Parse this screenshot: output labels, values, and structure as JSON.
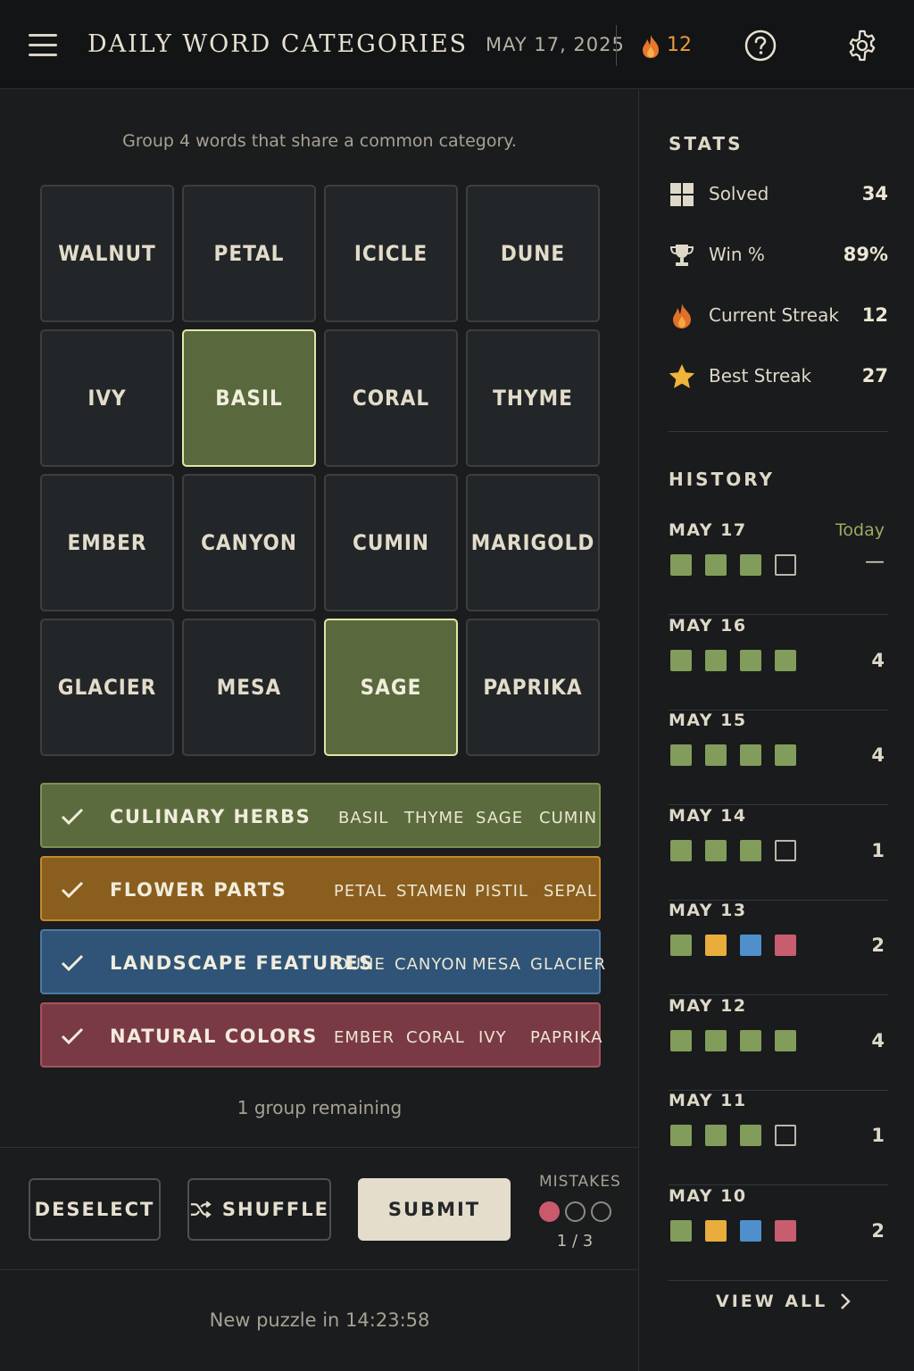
{
  "header": {
    "title": "DAILY WORD CATEGORIES",
    "date": "MAY 17, 2025",
    "streak": "12"
  },
  "main": {
    "instructions": "Group 4 words that share a common category.",
    "tiles": [
      {
        "word": "WALNUT",
        "selected": false
      },
      {
        "word": "PETAL",
        "selected": false
      },
      {
        "word": "ICICLE",
        "selected": false
      },
      {
        "word": "DUNE",
        "selected": false
      },
      {
        "word": "IVY",
        "selected": false
      },
      {
        "word": "BASIL",
        "selected": true
      },
      {
        "word": "CORAL",
        "selected": false
      },
      {
        "word": "THYME",
        "selected": false
      },
      {
        "word": "EMBER",
        "selected": false
      },
      {
        "word": "CANYON",
        "selected": false
      },
      {
        "word": "CUMIN",
        "selected": false
      },
      {
        "word": "MARIGOLD",
        "selected": false
      },
      {
        "word": "GLACIER",
        "selected": false
      },
      {
        "word": "MESA",
        "selected": false
      },
      {
        "word": "SAGE",
        "selected": true
      },
      {
        "word": "PAPRIKA",
        "selected": false
      }
    ],
    "groups": [
      {
        "name": "CULINARY HERBS",
        "words": [
          "BASIL",
          "THYME",
          "SAGE",
          "CUMIN"
        ],
        "color": "#5b6b3d",
        "border": "#7d9250"
      },
      {
        "name": "FLOWER PARTS",
        "words": [
          "PETAL",
          "STAMEN",
          "PISTIL",
          "SEPAL"
        ],
        "color": "#8a5e1e",
        "border": "#c08a2c"
      },
      {
        "name": "LANDSCAPE FEATURES",
        "words": [
          "DUNE",
          "CANYON",
          "MESA",
          "GLACIER"
        ],
        "color": "#2f5477",
        "border": "#4b7aa6"
      },
      {
        "name": "NATURAL COLORS",
        "words": [
          "EMBER",
          "CORAL",
          "IVY",
          "PAPRIKA"
        ],
        "color": "#7a3a45",
        "border": "#a5525f"
      }
    ],
    "remaining": "1 group remaining",
    "actions": {
      "deselect": "DESELECT",
      "shuffle": "SHUFFLE",
      "submit": "SUBMIT"
    },
    "mistakes": {
      "label": "MISTAKES",
      "used": 1,
      "total": 3,
      "count_text": "1 / 3"
    },
    "timer_label": "New puzzle in",
    "timer_value": "14:23:58"
  },
  "sidebar": {
    "stats_title": "STATS",
    "stats": [
      {
        "icon": "grid-icon",
        "label": "Solved",
        "value": "34"
      },
      {
        "icon": "trophy-icon",
        "label": "Win %",
        "value": "89%"
      },
      {
        "icon": "flame-icon",
        "label": "Current Streak",
        "value": "12"
      },
      {
        "icon": "star-icon",
        "label": "Best Streak",
        "value": "27"
      }
    ],
    "history_title": "HISTORY",
    "history": [
      {
        "date": "MAY 17",
        "today": "Today",
        "result": "—",
        "squares": [
          "g",
          "g",
          "g",
          "e"
        ]
      },
      {
        "date": "MAY 16",
        "result": "4",
        "squares": [
          "g",
          "g",
          "g",
          "g"
        ]
      },
      {
        "date": "MAY 15",
        "result": "4",
        "squares": [
          "g",
          "g",
          "g",
          "g"
        ]
      },
      {
        "date": "MAY 14",
        "result": "1",
        "squares": [
          "g",
          "g",
          "g",
          "e"
        ]
      },
      {
        "date": "MAY 13",
        "result": "2",
        "squares": [
          "g",
          "y",
          "b",
          "r"
        ]
      },
      {
        "date": "MAY 12",
        "result": "4",
        "squares": [
          "g",
          "g",
          "g",
          "g"
        ]
      },
      {
        "date": "MAY 11",
        "result": "1",
        "squares": [
          "g",
          "g",
          "g",
          "e"
        ]
      },
      {
        "date": "MAY 10",
        "result": "2",
        "squares": [
          "g",
          "y",
          "b",
          "r"
        ]
      }
    ],
    "view_all": "VIEW ALL"
  }
}
